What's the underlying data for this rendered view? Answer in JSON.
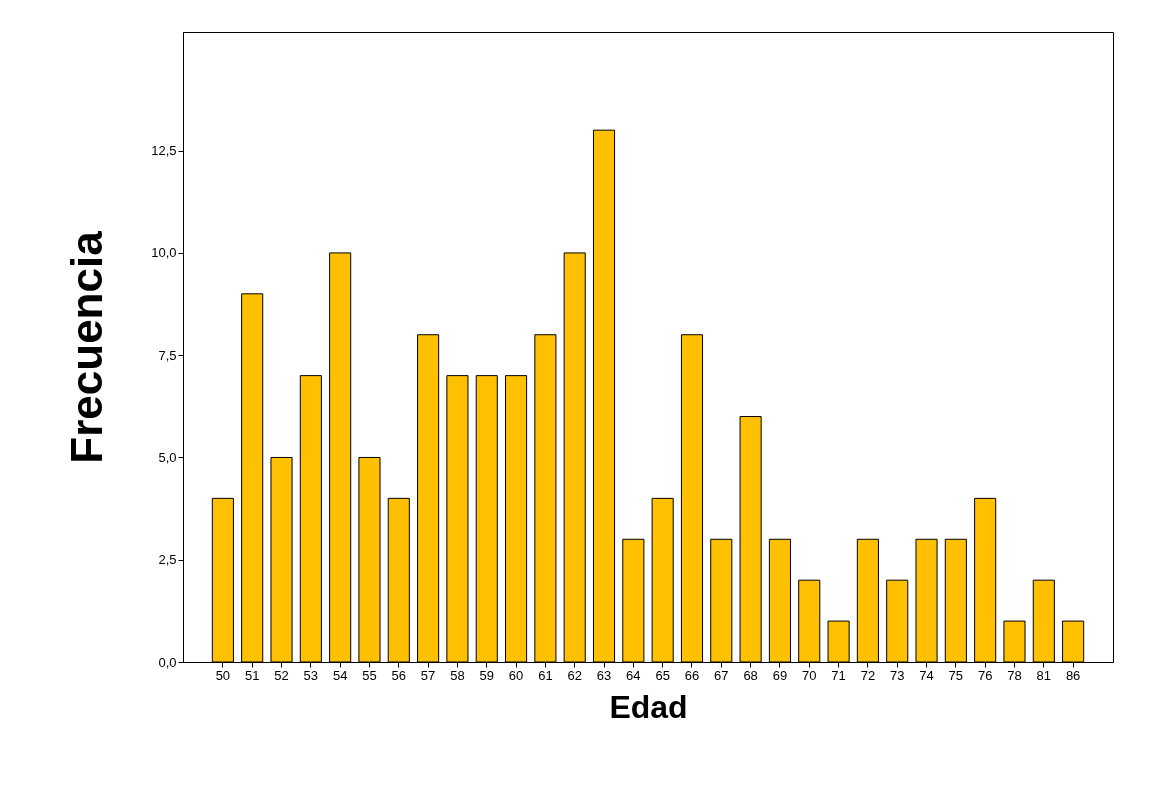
{
  "chart_data": {
    "type": "bar",
    "xlabel": "Edad",
    "ylabel": "Frecuencia",
    "categories": [
      "50",
      "51",
      "52",
      "53",
      "54",
      "55",
      "56",
      "57",
      "58",
      "59",
      "60",
      "61",
      "62",
      "63",
      "64",
      "65",
      "66",
      "67",
      "68",
      "69",
      "70",
      "71",
      "72",
      "73",
      "74",
      "75",
      "76",
      "78",
      "81",
      "86"
    ],
    "values": [
      4,
      9,
      5,
      7,
      10,
      5,
      4,
      8,
      7,
      7,
      7,
      8,
      10,
      13,
      3,
      4,
      8,
      3,
      6,
      3,
      2,
      1,
      3,
      2,
      3,
      3,
      4,
      1,
      2,
      1
    ],
    "color": "#ffc000",
    "ylim": [
      0,
      15.4
    ],
    "yticks": [
      {
        "value": 0,
        "label": "0,0"
      },
      {
        "value": 2.5,
        "label": "2,5"
      },
      {
        "value": 5,
        "label": "5,0"
      },
      {
        "value": 7.5,
        "label": "7,5"
      },
      {
        "value": 10,
        "label": "10,0"
      },
      {
        "value": 12.5,
        "label": "12,5"
      }
    ],
    "grid": false
  }
}
